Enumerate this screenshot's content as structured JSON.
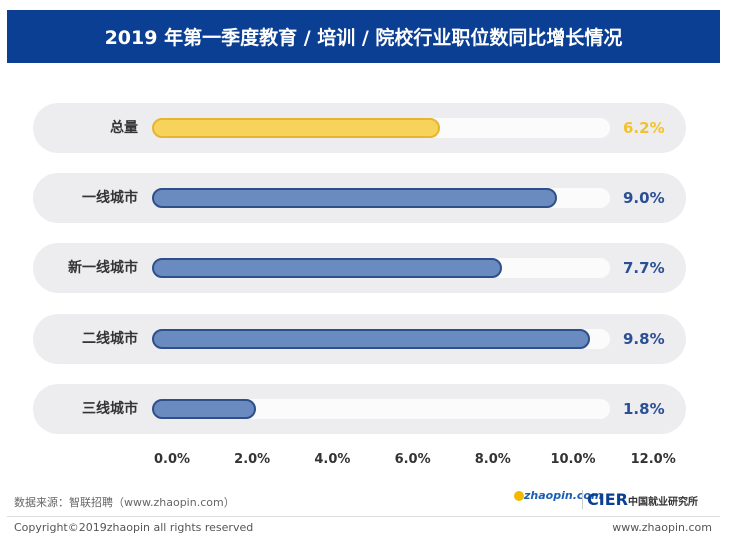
{
  "chart_data": {
    "type": "bar",
    "orientation": "horizontal",
    "title": "2019 年第一季度教育 / 培训 / 院校行业职位数同比增长情况",
    "categories": [
      "总量",
      "一线城市",
      "新一线城市",
      "二线城市",
      "三线城市"
    ],
    "values": [
      6.2,
      9.0,
      7.7,
      9.8,
      1.8
    ],
    "value_labels": [
      "6.2%",
      "9.0%",
      "7.7%",
      "9.8%",
      "1.8%"
    ],
    "x_ticks": [
      "0.0%",
      "2.0%",
      "4.0%",
      "6.0%",
      "8.0%",
      "10.0%",
      "12.0%"
    ],
    "xlim": [
      0,
      12
    ],
    "grid": false,
    "colors": {
      "highlight": "#f7d35c",
      "highlight_border": "#e6b530",
      "highlight_text": "#f2c22e",
      "bar": "#6a8bbf",
      "bar_border": "#2f4f8a",
      "bar_text": "#2a4f94"
    }
  },
  "footer": {
    "source": "数据来源：智联招聘（www.zhaopin.com）",
    "copyright": "Copyright©2019zhaopin all rights reserved",
    "url": "www.zhaopin.com",
    "logo_zhaopin": "zhaopin.com",
    "logo_cier": "CIER",
    "logo_cier_cn": "中国就业研究所"
  }
}
